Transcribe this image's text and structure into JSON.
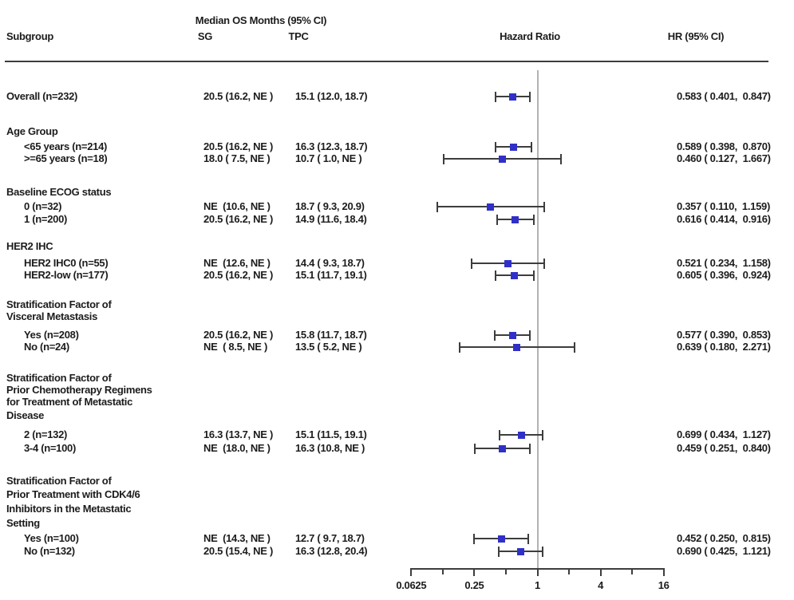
{
  "header": {
    "subgroup": "Subgroup",
    "median_os": "Median OS Months (95% CI)",
    "sg": "SG",
    "tpc": "TPC",
    "hazard_ratio": "Hazard Ratio",
    "hr_ci": "HR (95% CI)"
  },
  "chart_data": {
    "type": "scatter",
    "chart_style": "forest-plot",
    "x_scale": "log",
    "x_range": [
      0.0625,
      16
    ],
    "x_axis_tick_labels": [
      "0.0625",
      "0.25",
      "1",
      "4",
      "16"
    ],
    "x_minor_ticks": [
      0.125,
      0.5,
      2,
      8
    ],
    "reference_line": 1,
    "marker_color": "#3030c8",
    "line_color": "#3d3d3d",
    "rows": [
      {
        "kind": "data",
        "label": "Overall (n=232)",
        "indent": 0,
        "sg": "20.5 (16.2, NE )",
        "tpc": "15.1 (12.0, 18.7)",
        "hr": 0.583,
        "ci": [
          0.401,
          0.847
        ],
        "hr_text": "0.583 ( 0.401,  0.847)"
      },
      {
        "kind": "section",
        "lines": [
          "Age Group"
        ]
      },
      {
        "kind": "data",
        "label": "<65 years (n=214)",
        "indent": 1,
        "sg": "20.5 (16.2, NE )",
        "tpc": "16.3 (12.3, 18.7)",
        "hr": 0.589,
        "ci": [
          0.398,
          0.87
        ],
        "hr_text": "0.589 ( 0.398,  0.870)"
      },
      {
        "kind": "data",
        "label": ">=65 years (n=18)",
        "indent": 1,
        "sg": "18.0 ( 7.5, NE )",
        "tpc": "10.7 ( 1.0, NE )",
        "hr": 0.46,
        "ci": [
          0.127,
          1.667
        ],
        "hr_text": "0.460 ( 0.127,  1.667)"
      },
      {
        "kind": "section",
        "lines": [
          "Baseline ECOG status"
        ]
      },
      {
        "kind": "data",
        "label": "0 (n=32)",
        "indent": 1,
        "sg": "NE  (10.6, NE )",
        "tpc": "18.7 ( 9.3, 20.9)",
        "hr": 0.357,
        "ci": [
          0.11,
          1.159
        ],
        "hr_text": "0.357 ( 0.110,  1.159)"
      },
      {
        "kind": "data",
        "label": "1 (n=200)",
        "indent": 1,
        "sg": "20.5 (16.2, NE )",
        "tpc": "14.9 (11.6, 18.4)",
        "hr": 0.616,
        "ci": [
          0.414,
          0.916
        ],
        "hr_text": "0.616 ( 0.414,  0.916)"
      },
      {
        "kind": "section",
        "lines": [
          "HER2 IHC"
        ]
      },
      {
        "kind": "data",
        "label": "HER2 IHC0 (n=55)",
        "indent": 1,
        "sg": "NE  (12.6, NE )",
        "tpc": "14.4 ( 9.3, 18.7)",
        "hr": 0.521,
        "ci": [
          0.234,
          1.158
        ],
        "hr_text": "0.521 ( 0.234,  1.158)"
      },
      {
        "kind": "data",
        "label": "HER2-low (n=177)",
        "indent": 1,
        "sg": "20.5 (16.2, NE )",
        "tpc": "15.1 (11.7, 19.1)",
        "hr": 0.605,
        "ci": [
          0.396,
          0.924
        ],
        "hr_text": "0.605 ( 0.396,  0.924)"
      },
      {
        "kind": "section",
        "lines": [
          "Stratification Factor of",
          "Visceral Metastasis"
        ]
      },
      {
        "kind": "data",
        "label": "Yes (n=208)",
        "indent": 1,
        "sg": "20.5 (16.2, NE )",
        "tpc": "15.8 (11.7, 18.7)",
        "hr": 0.577,
        "ci": [
          0.39,
          0.853
        ],
        "hr_text": "0.577 ( 0.390,  0.853)"
      },
      {
        "kind": "data",
        "label": "No (n=24)",
        "indent": 1,
        "sg": "NE  ( 8.5, NE )",
        "tpc": "13.5 ( 5.2, NE )",
        "hr": 0.639,
        "ci": [
          0.18,
          2.271
        ],
        "hr_text": "0.639 ( 0.180,  2.271)"
      },
      {
        "kind": "section",
        "lines": [
          "Stratification Factor of",
          "Prior Chemotherapy Regimens",
          "for Treatment of Metastatic",
          "Disease"
        ]
      },
      {
        "kind": "data",
        "label": "2 (n=132)",
        "indent": 1,
        "sg": "16.3 (13.7, NE )",
        "tpc": "15.1 (11.5, 19.1)",
        "hr": 0.699,
        "ci": [
          0.434,
          1.127
        ],
        "hr_text": "0.699 ( 0.434,  1.127)"
      },
      {
        "kind": "data",
        "label": "3-4 (n=100)",
        "indent": 1,
        "sg": "NE  (18.0, NE )",
        "tpc": "16.3 (10.8, NE )",
        "hr": 0.459,
        "ci": [
          0.251,
          0.84
        ],
        "hr_text": "0.459 ( 0.251,  0.840)"
      },
      {
        "kind": "section",
        "lines": [
          "Stratification Factor of",
          "Prior Treatment with CDK4/6",
          "Inhibitors in the Metastatic",
          "Setting"
        ]
      },
      {
        "kind": "data",
        "label": "Yes (n=100)",
        "indent": 1,
        "sg": "NE  (14.3, NE )",
        "tpc": "12.7 ( 9.7, 18.7)",
        "hr": 0.452,
        "ci": [
          0.25,
          0.815
        ],
        "hr_text": "0.452 ( 0.250,  0.815)"
      },
      {
        "kind": "data",
        "label": "No (n=132)",
        "indent": 1,
        "sg": "20.5 (15.4, NE )",
        "tpc": "16.3 (12.8, 20.4)",
        "hr": 0.69,
        "ci": [
          0.425,
          1.121
        ],
        "hr_text": "0.690 ( 0.425,  1.121)"
      }
    ]
  }
}
